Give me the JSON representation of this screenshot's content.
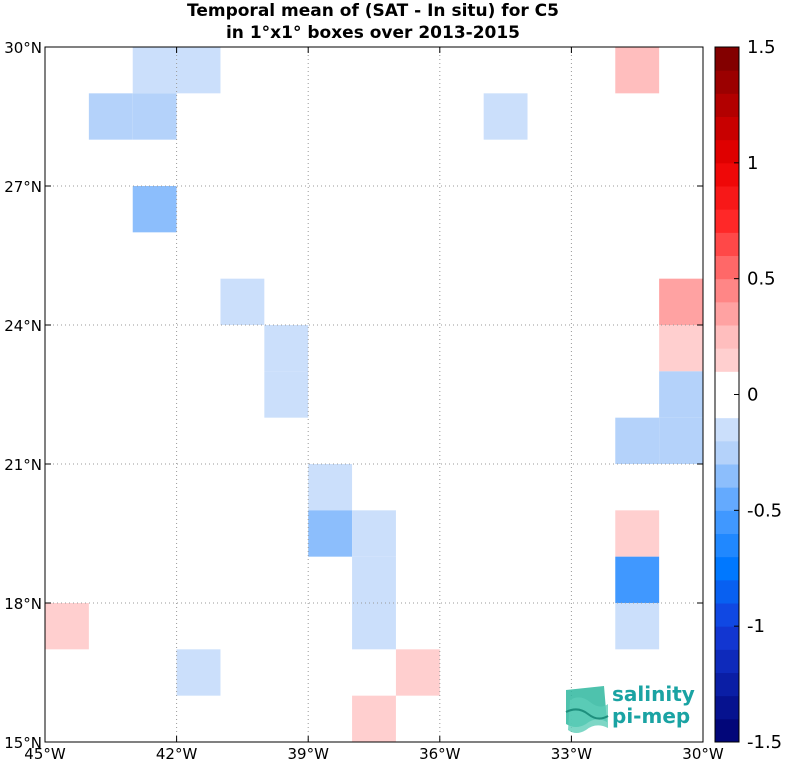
{
  "chart_data": {
    "type": "heatmap",
    "title": [
      "Temporal mean of (SAT - In situ) for C5",
      "in 1°x1° boxes over 2013-2015"
    ],
    "x_range": [
      -45,
      -30
    ],
    "y_range": [
      15,
      30
    ],
    "x_ticks": [
      -45,
      -42,
      -39,
      -36,
      -33,
      -30
    ],
    "x_tick_labels": [
      "45°W",
      "42°W",
      "39°W",
      "36°W",
      "33°W",
      "30°W"
    ],
    "y_ticks": [
      15,
      18,
      21,
      24,
      27,
      30
    ],
    "y_tick_labels": [
      "15°N",
      "18°N",
      "21°N",
      "24°N",
      "27°N",
      "30°N"
    ],
    "grid": "dotted",
    "colorbar": {
      "min": -1.5,
      "max": 1.5,
      "ticks": [
        1.5,
        1,
        0.5,
        0,
        -0.5,
        -1,
        -1.5
      ],
      "tick_labels": [
        "1.5",
        "1",
        "0.5",
        "0",
        "-0.5",
        "-1",
        "-1.5"
      ],
      "placement": "right",
      "levels": 30
    },
    "cells": [
      {
        "lon": -43,
        "lat": 29,
        "value": -0.15
      },
      {
        "lon": -42,
        "lat": 29,
        "value": -0.15
      },
      {
        "lon": -32,
        "lat": 29,
        "value": 0.25
      },
      {
        "lon": -44,
        "lat": 28,
        "value": -0.25
      },
      {
        "lon": -43,
        "lat": 28,
        "value": -0.25
      },
      {
        "lon": -35,
        "lat": 28,
        "value": -0.15
      },
      {
        "lon": -43,
        "lat": 26,
        "value": -0.3
      },
      {
        "lon": -41,
        "lat": 24,
        "value": -0.15
      },
      {
        "lon": -40,
        "lat": 23,
        "value": -0.15
      },
      {
        "lon": -40,
        "lat": 22,
        "value": -0.15
      },
      {
        "lon": -31,
        "lat": 24,
        "value": 0.4
      },
      {
        "lon": -31,
        "lat": 23,
        "value": 0.15
      },
      {
        "lon": -31,
        "lat": 22,
        "value": -0.25
      },
      {
        "lon": -32,
        "lat": 21,
        "value": -0.25
      },
      {
        "lon": -31,
        "lat": 21,
        "value": -0.25
      },
      {
        "lon": -39,
        "lat": 20,
        "value": -0.15
      },
      {
        "lon": -39,
        "lat": 19,
        "value": -0.3
      },
      {
        "lon": -38,
        "lat": 19,
        "value": -0.15
      },
      {
        "lon": -38,
        "lat": 18,
        "value": -0.15
      },
      {
        "lon": -38,
        "lat": 17,
        "value": -0.15
      },
      {
        "lon": -32,
        "lat": 19,
        "value": 0.15
      },
      {
        "lon": -32,
        "lat": 18,
        "value": -0.55
      },
      {
        "lon": -32,
        "lat": 17,
        "value": -0.15
      },
      {
        "lon": -45,
        "lat": 17,
        "value": 0.15
      },
      {
        "lon": -42,
        "lat": 16,
        "value": -0.15
      },
      {
        "lon": -37,
        "lat": 16,
        "value": 0.15
      },
      {
        "lon": -38,
        "lat": 15,
        "value": 0.15
      }
    ]
  },
  "logo": {
    "line1": "salinity",
    "line2": "pi-mep"
  }
}
